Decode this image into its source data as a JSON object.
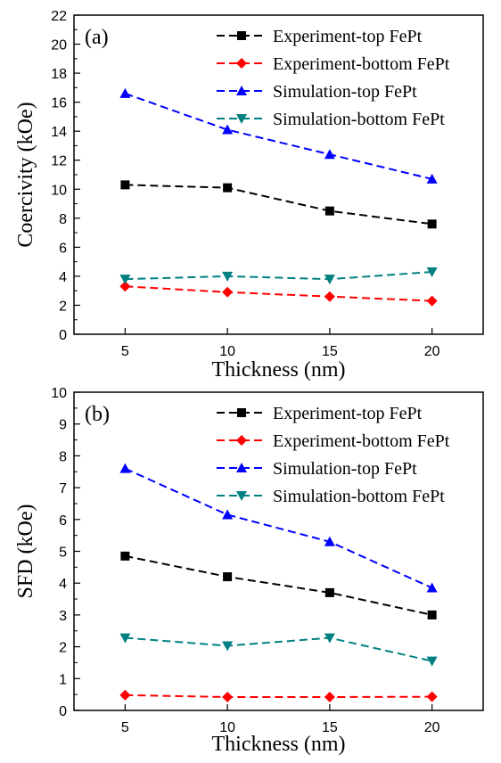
{
  "chart_data": [
    {
      "type": "line",
      "panel_label": "(a)",
      "xlabel": "Thickness (nm)",
      "ylabel": "Coercivity (kOe)",
      "xlim": [
        2.5,
        22.5
      ],
      "ylim": [
        0,
        22
      ],
      "x_ticks": [
        5,
        10,
        15,
        20
      ],
      "y_ticks": [
        0,
        2,
        4,
        6,
        8,
        10,
        12,
        14,
        16,
        18,
        20,
        22
      ],
      "legend_position": "top-right",
      "grid": false,
      "x": [
        5,
        10,
        15,
        20
      ],
      "series": [
        {
          "name": "Experiment-top FePt",
          "color": "#000000",
          "marker": "square",
          "values": [
            10.3,
            10.1,
            8.5,
            7.6
          ]
        },
        {
          "name": "Experiment-bottom FePt",
          "color": "#ff0000",
          "marker": "diamond",
          "values": [
            3.3,
            2.9,
            2.6,
            2.3
          ]
        },
        {
          "name": "Simulation-top FePt",
          "color": "#0000ff",
          "marker": "triangle-up",
          "values": [
            16.6,
            14.1,
            12.4,
            10.7
          ]
        },
        {
          "name": "Simulation-bottom FePt",
          "color": "#008080",
          "marker": "triangle-down",
          "values": [
            3.8,
            4.0,
            3.8,
            4.3
          ]
        }
      ]
    },
    {
      "type": "line",
      "panel_label": "(b)",
      "xlabel": "Thickness (nm)",
      "ylabel": "SFD (kOe)",
      "xlim": [
        2.5,
        22.5
      ],
      "ylim": [
        0,
        10
      ],
      "x_ticks": [
        5,
        10,
        15,
        20
      ],
      "y_ticks": [
        0,
        1,
        2,
        3,
        4,
        5,
        6,
        7,
        8,
        9,
        10
      ],
      "legend_position": "top-right",
      "grid": false,
      "x": [
        5,
        10,
        15,
        20
      ],
      "series": [
        {
          "name": "Experiment-top FePt",
          "color": "#000000",
          "marker": "square",
          "values": [
            4.85,
            4.2,
            3.7,
            3.0
          ]
        },
        {
          "name": "Experiment-bottom FePt",
          "color": "#ff0000",
          "marker": "diamond",
          "values": [
            0.48,
            0.42,
            0.42,
            0.43
          ]
        },
        {
          "name": "Simulation-top FePt",
          "color": "#0000ff",
          "marker": "triangle-up",
          "values": [
            7.6,
            6.15,
            5.3,
            3.85
          ]
        },
        {
          "name": "Simulation-bottom FePt",
          "color": "#008080",
          "marker": "triangle-down",
          "values": [
            2.28,
            2.03,
            2.28,
            1.55
          ]
        }
      ]
    }
  ]
}
